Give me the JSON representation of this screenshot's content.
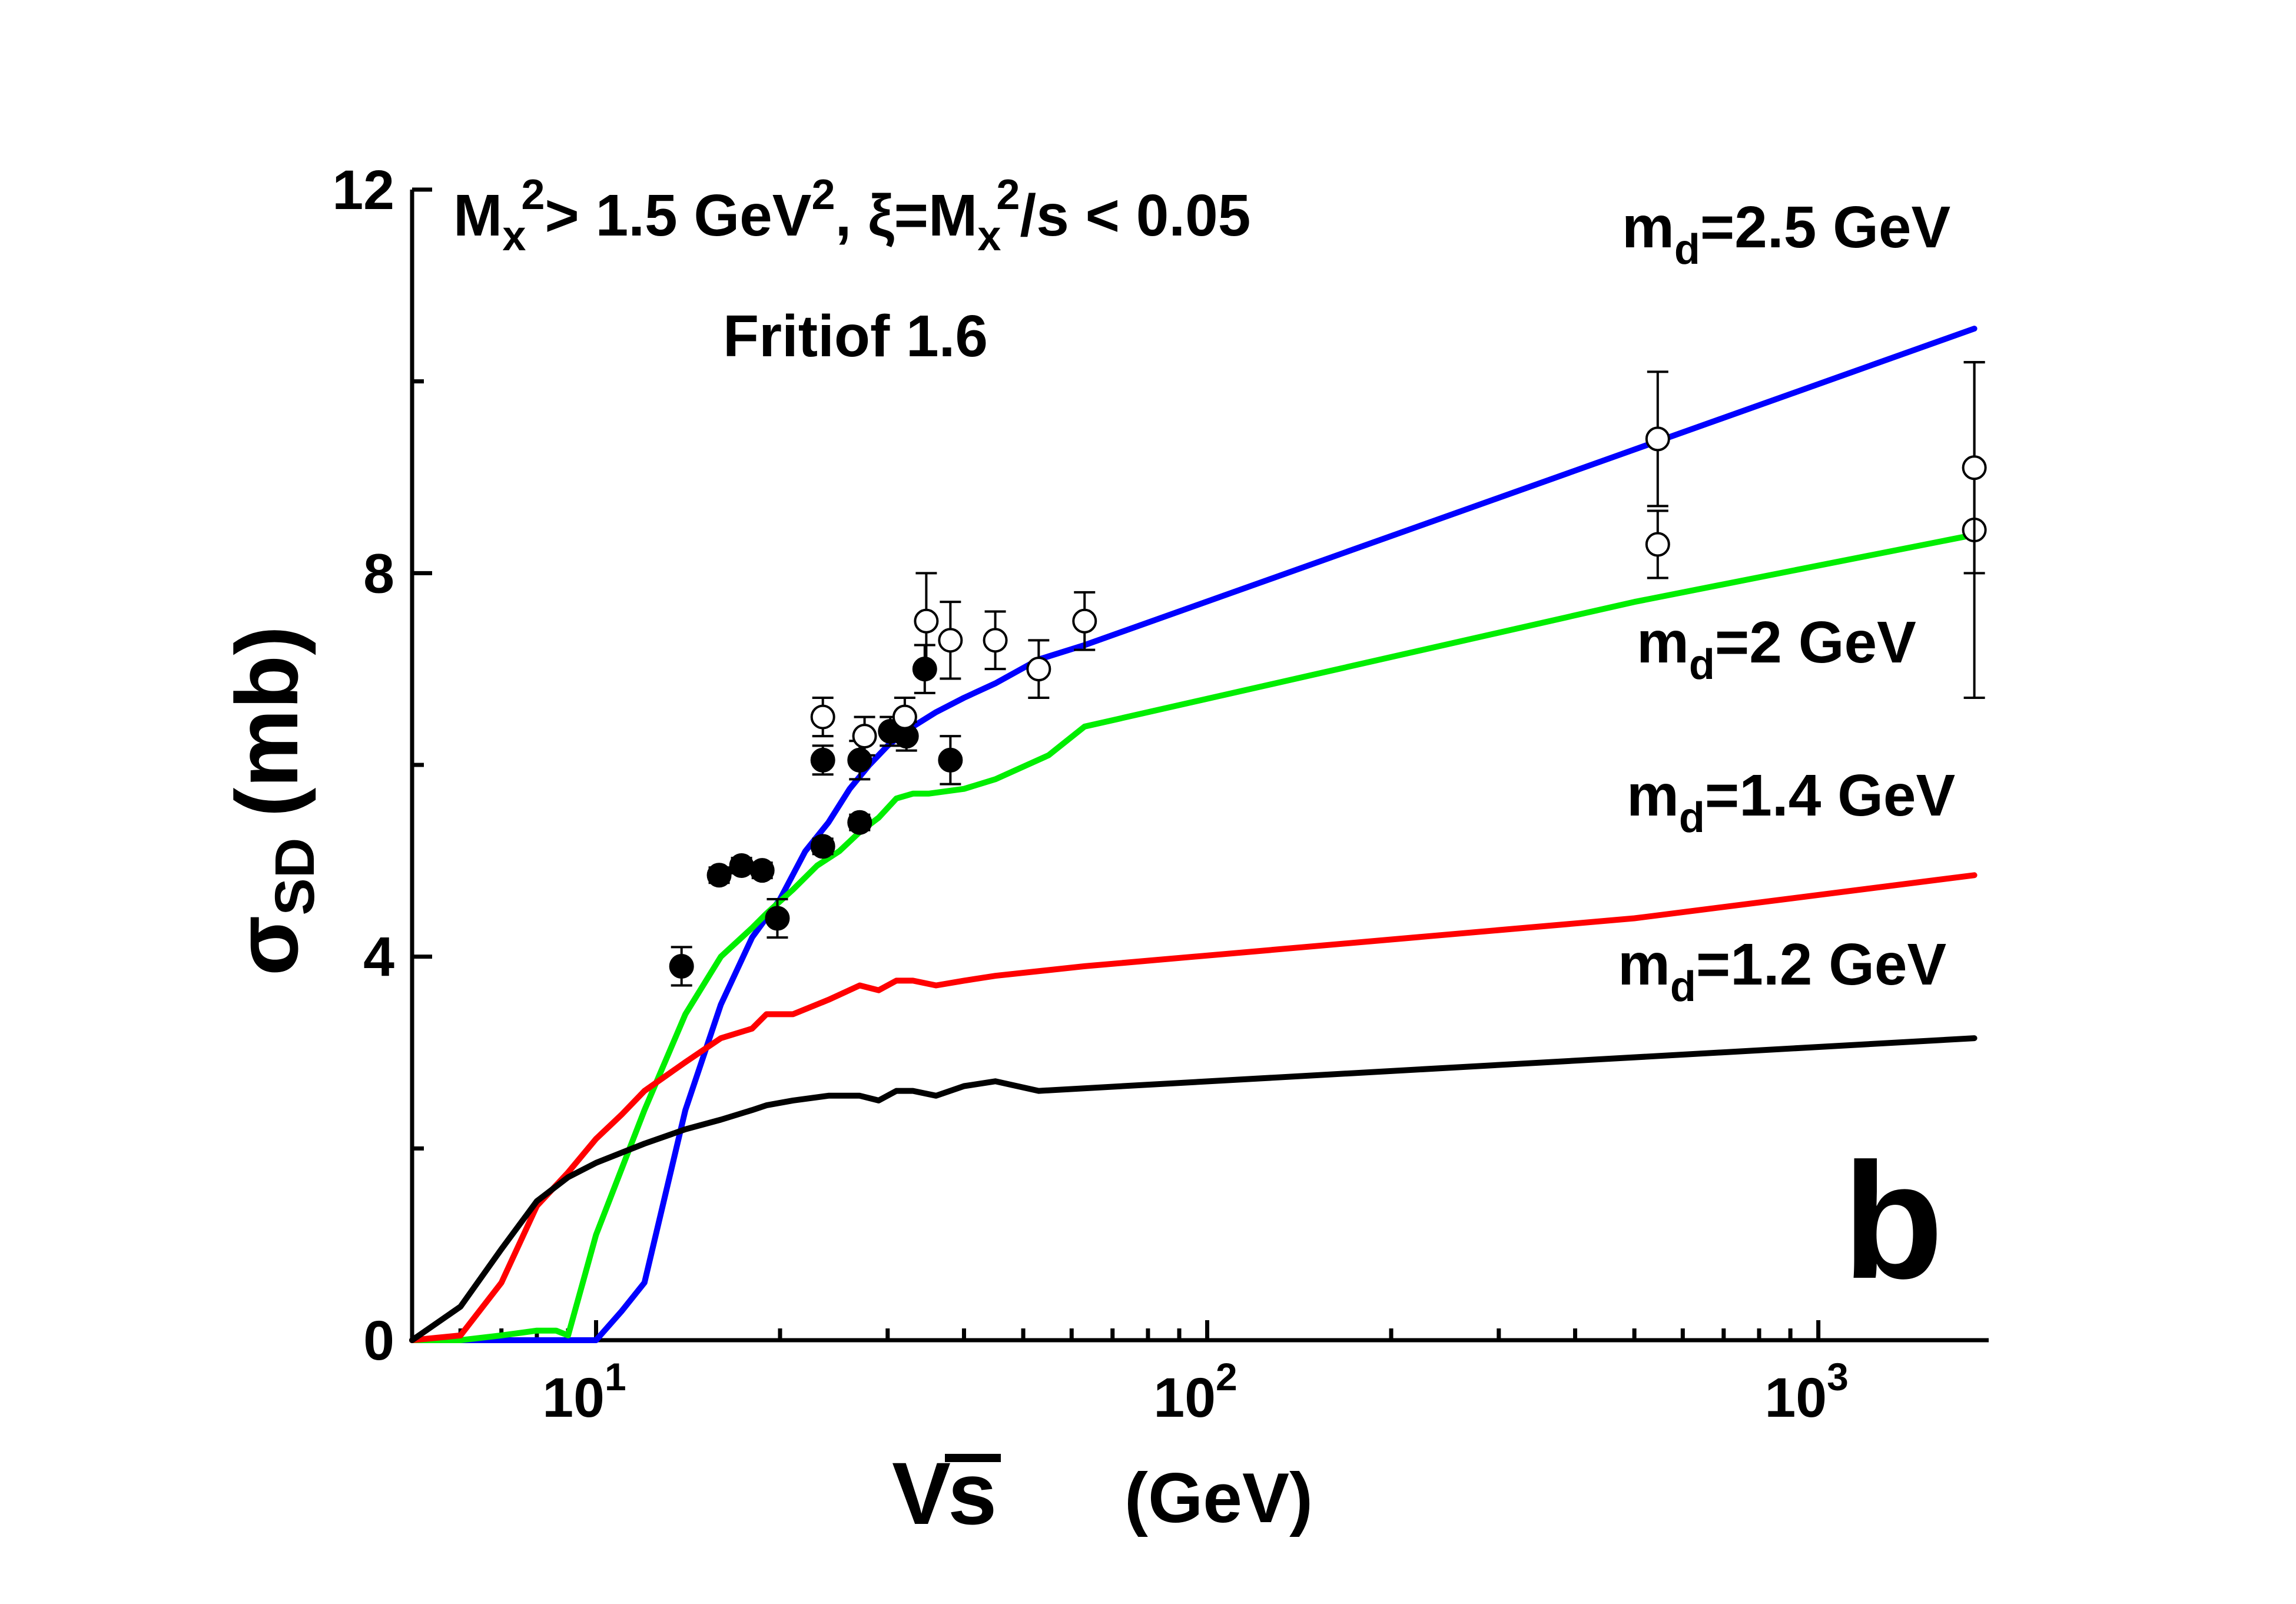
{
  "chart_data": {
    "type": "line",
    "x_scale": "log",
    "xlim": [
      5,
      1900
    ],
    "ylim": [
      0,
      12
    ],
    "x_tick_labels": [
      {
        "x": 10,
        "base": "10",
        "exp": "1"
      },
      {
        "x": 100,
        "base": "10",
        "exp": "2"
      },
      {
        "x": 1000,
        "base": "10",
        "exp": "3"
      }
    ],
    "y_ticks": [
      0,
      4,
      8,
      12
    ],
    "y_tick_labels": [
      "0",
      "4",
      "8",
      "12"
    ],
    "xlabel": {
      "prefix": "V",
      "var": "s",
      "unit": "(GeV)"
    },
    "ylabel": {
      "symbol": "σ",
      "sub": "SD",
      "unit": "(mb)"
    },
    "cuts_text": {
      "a": "M",
      "a_sub": "x",
      "a_sup": "2",
      "b": "> 1.5 GeV",
      "b_sup": "2",
      "c": ", ξ=M",
      "c_sub": "x",
      "c_sup": "2",
      "d": "/s < 0.05"
    },
    "model": "Fritiof 1.6",
    "panel_label": "b",
    "series": [
      {
        "name": "md=2.5 GeV",
        "label_pre": "m",
        "label_sub": "d",
        "label_post": "=2.5 GeV",
        "color": "#0000ff",
        "x": [
          5,
          6,
          7,
          8,
          9,
          10,
          11,
          12,
          14,
          16,
          18,
          20,
          22,
          24,
          26,
          28,
          30,
          33,
          36,
          40,
          45,
          53,
          63,
          1800
        ],
        "y": [
          0,
          0,
          0,
          0,
          0,
          0,
          0.3,
          0.6,
          2.4,
          3.5,
          4.2,
          4.6,
          5.1,
          5.4,
          5.75,
          6.0,
          6.2,
          6.4,
          6.55,
          6.7,
          6.85,
          7.1,
          7.25,
          10.55
        ]
      },
      {
        "name": "md=2 GeV",
        "label_pre": "m",
        "label_sub": "d",
        "label_post": "=2 GeV",
        "color": "#00ee00",
        "x": [
          5,
          6,
          7,
          8,
          8.6,
          9,
          10,
          12,
          14,
          16,
          18,
          19,
          21,
          23,
          25,
          27,
          29,
          31,
          33,
          35,
          40,
          45,
          55,
          63,
          500,
          1800
        ],
        "y": [
          0,
          0,
          0.05,
          0.1,
          0.1,
          0.05,
          1.1,
          2.4,
          3.4,
          4.0,
          4.3,
          4.45,
          4.7,
          4.95,
          5.1,
          5.3,
          5.45,
          5.65,
          5.7,
          5.7,
          5.75,
          5.85,
          6.1,
          6.4,
          7.7,
          8.4
        ]
      },
      {
        "name": "md=1.4 GeV",
        "label_pre": "m",
        "label_sub": "d",
        "label_post": "=1.4 GeV",
        "color": "#ff0000",
        "x": [
          5,
          6,
          7,
          8,
          9,
          10,
          11,
          12,
          14,
          16,
          18,
          19,
          21,
          24,
          27,
          29,
          31,
          33,
          36,
          40,
          45,
          63,
          500,
          1800
        ],
        "y": [
          0,
          0.05,
          0.6,
          1.4,
          1.75,
          2.1,
          2.35,
          2.6,
          2.9,
          3.15,
          3.25,
          3.4,
          3.4,
          3.55,
          3.7,
          3.65,
          3.75,
          3.75,
          3.7,
          3.75,
          3.8,
          3.9,
          4.4,
          4.85
        ]
      },
      {
        "name": "md=1.2 GeV",
        "label_pre": "m",
        "label_sub": "d",
        "label_post": "=1.2 GeV",
        "color": "#000000",
        "x": [
          5,
          6,
          7,
          8,
          9,
          10,
          12,
          14,
          16,
          18,
          19,
          21,
          24,
          27,
          29,
          31,
          33,
          36,
          40,
          45,
          53,
          1800
        ],
        "y": [
          0,
          0.35,
          0.95,
          1.45,
          1.7,
          1.85,
          2.05,
          2.2,
          2.3,
          2.4,
          2.45,
          2.5,
          2.55,
          2.55,
          2.5,
          2.6,
          2.6,
          2.55,
          2.65,
          2.7,
          2.6,
          3.15
        ]
      }
    ],
    "data_filled": [
      {
        "x": 13.8,
        "y": 3.9,
        "err": 0.2
      },
      {
        "x": 15.9,
        "y": 4.85,
        "err": 0.08
      },
      {
        "x": 17.3,
        "y": 4.95,
        "err": 0.08
      },
      {
        "x": 18.7,
        "y": 4.9,
        "err": 0.08
      },
      {
        "x": 19.8,
        "y": 4.4,
        "err": 0.2
      },
      {
        "x": 23.5,
        "y": 5.15,
        "err": 0.08
      },
      {
        "x": 23.5,
        "y": 6.05,
        "err": 0.15
      },
      {
        "x": 27.0,
        "y": 5.4,
        "err": 0.08
      },
      {
        "x": 27.0,
        "y": 6.05,
        "err": 0.2
      },
      {
        "x": 30.3,
        "y": 6.35,
        "err": 0.15
      },
      {
        "x": 32.2,
        "y": 6.3,
        "err": 0.15
      },
      {
        "x": 34.5,
        "y": 7.0,
        "err": 0.25
      },
      {
        "x": 38.0,
        "y": 6.05,
        "err": 0.25
      }
    ],
    "data_open": [
      {
        "x": 23.5,
        "y": 6.5,
        "err": 0.2
      },
      {
        "x": 27.5,
        "y": 6.3,
        "err": 0.2
      },
      {
        "x": 32.0,
        "y": 6.5,
        "err": 0.2
      },
      {
        "x": 34.7,
        "y": 7.5,
        "err": 0.5
      },
      {
        "x": 38.0,
        "y": 7.3,
        "err": 0.4
      },
      {
        "x": 45.0,
        "y": 7.3,
        "err": 0.3
      },
      {
        "x": 53.0,
        "y": 7.0,
        "err": 0.3
      },
      {
        "x": 63.0,
        "y": 7.5,
        "err": 0.3
      },
      {
        "x": 546,
        "y": 9.4,
        "err": 0.7
      },
      {
        "x": 546,
        "y": 8.3,
        "err": 0.35
      },
      {
        "x": 1800,
        "y": 8.45,
        "err": 1.75
      },
      {
        "x": 1800,
        "y": 9.1,
        "err": 1.1
      }
    ]
  }
}
